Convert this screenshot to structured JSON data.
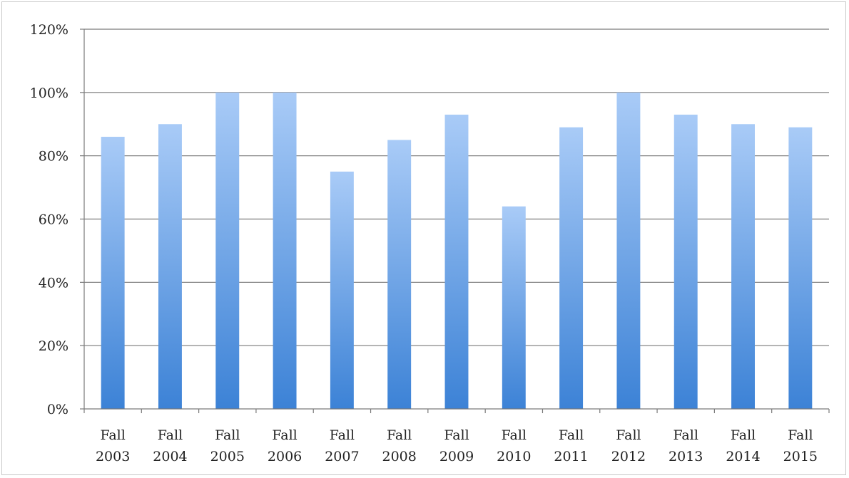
{
  "chart_data": {
    "type": "bar",
    "title": "",
    "xlabel": "",
    "ylabel": "",
    "categories": [
      [
        "Fall",
        "2003"
      ],
      [
        "Fall",
        "2004"
      ],
      [
        "Fall",
        "2005"
      ],
      [
        "Fall",
        "2006"
      ],
      [
        "Fall",
        "2007"
      ],
      [
        "Fall",
        "2008"
      ],
      [
        "Fall",
        "2009"
      ],
      [
        "Fall",
        "2010"
      ],
      [
        "Fall",
        "2011"
      ],
      [
        "Fall",
        "2012"
      ],
      [
        "Fall",
        "2013"
      ],
      [
        "Fall",
        "2014"
      ],
      [
        "Fall",
        "2015"
      ]
    ],
    "series": [
      {
        "values": [
          86,
          90,
          100,
          100,
          75,
          85,
          93,
          64,
          89,
          100,
          93,
          90,
          89
        ]
      }
    ],
    "ylim": [
      0,
      120
    ],
    "yticks": [
      0,
      20,
      40,
      60,
      80,
      100,
      120
    ],
    "ytick_labels": [
      "0%",
      "20%",
      "40%",
      "60%",
      "80%",
      "100%",
      "120%"
    ],
    "grid": true,
    "legend": "none",
    "colors": {
      "bar_top": "#a9cbf7",
      "bar_bottom": "#3c82d6",
      "grid": "#7a7a7a",
      "axis": "#7a7a7a"
    }
  }
}
